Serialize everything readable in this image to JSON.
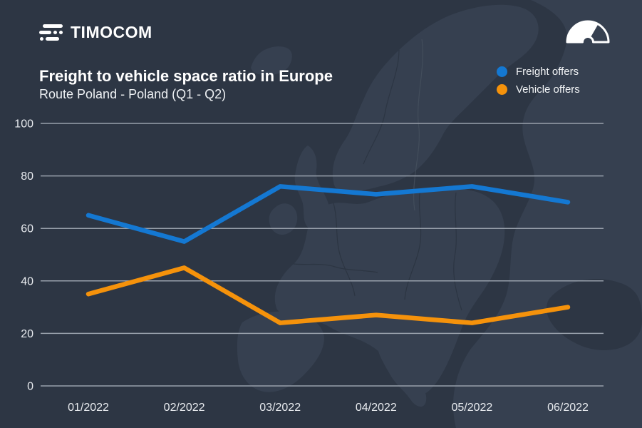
{
  "header": {
    "logo_text": "TIMOCOM",
    "logo_icon": "timocom-speed-lines-icon",
    "corner_icon": "gauge-icon"
  },
  "title": "Freight to vehicle space ratio in Europe",
  "subtitle": "Route Poland - Poland (Q1 - Q2)",
  "legend": [
    {
      "label": "Freight offers",
      "color": "#1478d2"
    },
    {
      "label": "Vehicle offers",
      "color": "#f5920b"
    }
  ],
  "colors": {
    "background": "#2d3644",
    "land": "#364050",
    "sea_patch": "#2d3644",
    "gridline": "#98a0ab",
    "tick_label": "#e8ebef",
    "accent_blue": "#1478d2",
    "accent_orange": "#f5920b"
  },
  "chart_data": {
    "type": "line",
    "title": "Freight to vehicle space ratio in Europe",
    "subtitle": "Route Poland - Poland (Q1 - Q2)",
    "categories": [
      "01/2022",
      "02/2022",
      "03/2022",
      "04/2022",
      "05/2022",
      "06/2022"
    ],
    "series": [
      {
        "name": "Freight offers",
        "color": "#1478d2",
        "values": [
          65,
          55,
          76,
          73,
          76,
          70
        ]
      },
      {
        "name": "Vehicle offers",
        "color": "#f5920b",
        "values": [
          35,
          45,
          24,
          27,
          24,
          30
        ]
      }
    ],
    "xlabel": "",
    "ylabel": "",
    "ylim": [
      0,
      100
    ],
    "yticks": [
      0,
      20,
      40,
      60,
      80,
      100
    ],
    "grid": true,
    "legend_position": "top-right",
    "background": "europe-map-silhouette"
  }
}
